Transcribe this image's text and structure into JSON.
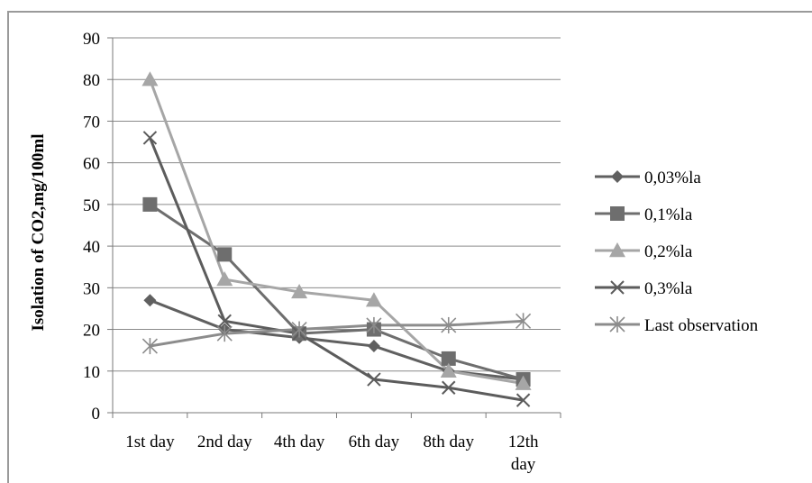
{
  "chart_data": {
    "type": "line",
    "title": "",
    "xlabel": "",
    "ylabel": "Isolation of CO2,mg/100ml",
    "ylim": [
      0,
      90
    ],
    "yticks": [
      0,
      10,
      20,
      30,
      40,
      50,
      60,
      70,
      80,
      90
    ],
    "grid": true,
    "legend_position": "right",
    "categories": [
      [
        "1st day"
      ],
      [
        "2nd day"
      ],
      [
        "4th day"
      ],
      [
        "6th day"
      ],
      [
        "8th day"
      ],
      [
        "12th",
        "day"
      ]
    ],
    "series": [
      {
        "name": "0,03%la",
        "marker": "diamond",
        "color": "#606060",
        "values": [
          27,
          20,
          18,
          16,
          10,
          8
        ]
      },
      {
        "name": "0,1%la",
        "marker": "square",
        "color": "#6e6e6e",
        "values": [
          50,
          38,
          19,
          20,
          13,
          8
        ]
      },
      {
        "name": "0,2%la",
        "marker": "triangle",
        "color": "#a6a6a6",
        "values": [
          80,
          32,
          29,
          27,
          10,
          7
        ]
      },
      {
        "name": "0,3%la",
        "marker": "x",
        "color": "#5c5c5c",
        "values": [
          66,
          22,
          19,
          8,
          6,
          3
        ]
      },
      {
        "name": "Last observation",
        "marker": "asterisk",
        "color": "#8c8c8c",
        "values": [
          16,
          19,
          20,
          21,
          21,
          22
        ]
      }
    ]
  }
}
